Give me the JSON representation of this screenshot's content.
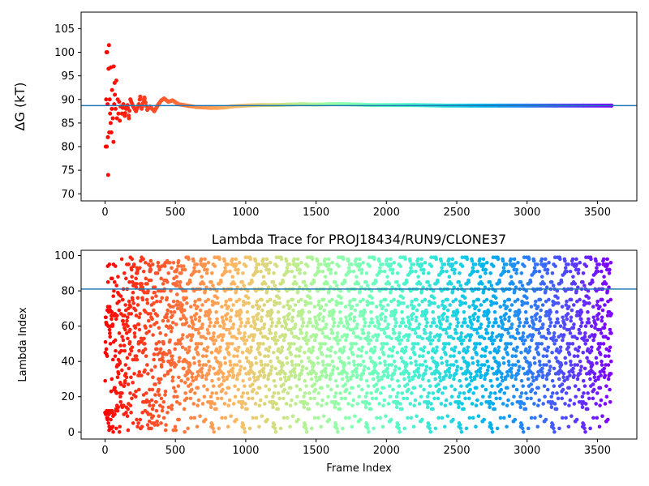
{
  "chart_data": [
    {
      "type": "scatter",
      "ylabel": "ΔG (kT)",
      "xlabel": "",
      "title": "",
      "xlim": [
        -170,
        3780
      ],
      "ylim": [
        68.5,
        108.5
      ],
      "xticks": [
        0,
        500,
        1000,
        1500,
        2000,
        2500,
        3000,
        3500
      ],
      "yticks": [
        70,
        75,
        80,
        85,
        90,
        95,
        100,
        105
      ],
      "grid": false,
      "colormap": "rainbow",
      "hline": {
        "y": 88.7,
        "color": "#1f77b4"
      },
      "series": [
        {
          "points": [
            [
              5,
              80
            ],
            [
              8,
              90
            ],
            [
              10,
              100
            ],
            [
              12,
              80
            ],
            [
              15,
              100
            ],
            [
              18,
              89
            ],
            [
              20,
              82
            ],
            [
              22,
              74
            ],
            [
              25,
              96.5
            ],
            [
              28,
              101.5
            ],
            [
              30,
              83
            ],
            [
              33,
              90
            ],
            [
              36,
              87
            ],
            [
              40,
              85
            ],
            [
              42,
              96.8
            ],
            [
              45,
              83
            ],
            [
              48,
              88
            ],
            [
              50,
              92
            ],
            [
              55,
              86
            ],
            [
              60,
              81
            ],
            [
              62,
              97
            ],
            [
              65,
              89
            ],
            [
              68,
              93.5
            ],
            [
              70,
              91
            ],
            [
              75,
              88
            ],
            [
              80,
              94
            ],
            [
              85,
              86
            ],
            [
              90,
              90
            ],
            [
              95,
              87
            ],
            [
              100,
              89.5
            ],
            [
              105,
              85.5
            ],
            [
              110,
              88.5
            ],
            [
              120,
              87
            ],
            [
              130,
              89
            ],
            [
              140,
              86.5
            ],
            [
              150,
              88
            ],
            [
              160,
              88.8
            ],
            [
              170,
              86
            ],
            [
              180,
              90
            ],
            [
              200,
              88.5
            ],
            [
              220,
              87.5
            ],
            [
              240,
              89
            ],
            [
              250,
              90.6
            ],
            [
              260,
              88
            ],
            [
              280,
              90.4
            ],
            [
              300,
              87.8
            ],
            [
              320,
              88.5
            ],
            [
              350,
              87.5
            ],
            [
              380,
              89
            ],
            [
              400,
              89.8
            ],
            [
              420,
              90.2
            ],
            [
              450,
              89.5
            ],
            [
              480,
              89.8
            ],
            [
              520,
              89
            ],
            [
              560,
              88.8
            ],
            [
              600,
              88.6
            ],
            [
              650,
              88.4
            ],
            [
              700,
              88.3
            ],
            [
              750,
              88.2
            ],
            [
              800,
              88.2
            ],
            [
              850,
              88.3
            ],
            [
              900,
              88.5
            ],
            [
              950,
              88.6
            ],
            [
              1000,
              88.7
            ],
            [
              1100,
              88.8
            ],
            [
              1200,
              88.8
            ],
            [
              1300,
              88.9
            ],
            [
              1400,
              89
            ],
            [
              1500,
              88.9
            ],
            [
              1600,
              89
            ],
            [
              1700,
              89
            ],
            [
              1800,
              88.9
            ],
            [
              1900,
              88.8
            ],
            [
              2000,
              88.8
            ],
            [
              2200,
              88.8
            ],
            [
              2400,
              88.7
            ],
            [
              2600,
              88.7
            ],
            [
              2800,
              88.7
            ],
            [
              3000,
              88.7
            ],
            [
              3200,
              88.7
            ],
            [
              3400,
              88.7
            ],
            [
              3600,
              88.7
            ]
          ]
        }
      ]
    },
    {
      "type": "scatter",
      "title": "Lambda Trace for PROJ18434/RUN9/CLONE37",
      "xlabel": "Frame Index",
      "ylabel": "Lambda Index",
      "xlim": [
        -170,
        3780
      ],
      "ylim": [
        -4,
        103
      ],
      "xticks": [
        0,
        500,
        1000,
        1500,
        2000,
        2500,
        3000,
        3500
      ],
      "yticks": [
        0,
        20,
        40,
        60,
        80,
        100
      ],
      "grid": false,
      "colormap": "rainbow",
      "hline": {
        "y": 81,
        "color": "#1f77b4"
      },
      "frames": {
        "start": 0,
        "end": 3600,
        "count": 3600,
        "lambda_min": 0,
        "lambda_max": 99
      }
    }
  ]
}
